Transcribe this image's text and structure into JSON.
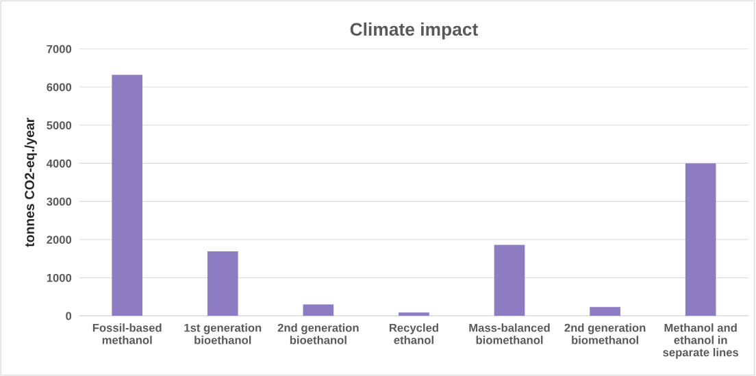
{
  "chart_data": {
    "type": "bar",
    "title": "Climate impact",
    "ylabel": "tonnes CO2-eq./year",
    "categories": [
      "Fossil-based\nmethanol",
      "1st generation\nbioethanol",
      "2nd generation\nbioethanol",
      "Recycled\nethanol",
      "Mass-balanced\nbiomethanol",
      "2nd generation\nbiomethanol",
      "Methanol and\nethanol in\nseparate lines"
    ],
    "values": [
      6320,
      1690,
      300,
      90,
      1860,
      230,
      4000
    ],
    "color": "#8e7cc3",
    "ylim": [
      0,
      7000
    ],
    "yticks": [
      0,
      1000,
      2000,
      3000,
      4000,
      5000,
      6000,
      7000
    ],
    "grid": "y",
    "legend": false
  }
}
